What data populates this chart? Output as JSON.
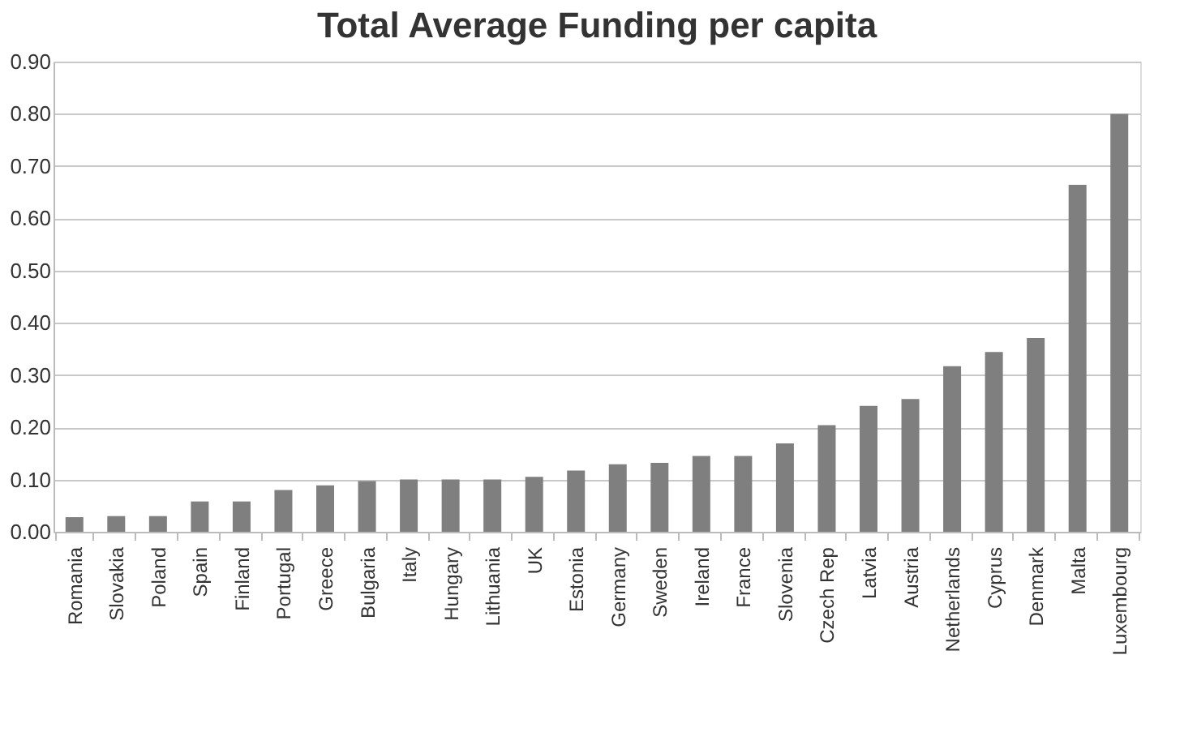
{
  "chart_data": {
    "type": "bar",
    "title": "Total Average Funding per capita",
    "categories": [
      "Romania",
      "Slovakia",
      "Poland",
      "Spain",
      "Finland",
      "Portugal",
      "Greece",
      "Bulgaria",
      "Italy",
      "Hungary",
      "Lithuania",
      "UK",
      "Estonia",
      "Germany",
      "Sweden",
      "Ireland",
      "France",
      "Slovenia",
      "Czech Rep",
      "Latvia",
      "Austria",
      "Netherlands",
      "Cyprus",
      "Denmark",
      "Malta",
      "Luxembourg"
    ],
    "values": [
      0.028,
      0.03,
      0.03,
      0.058,
      0.058,
      0.08,
      0.089,
      0.097,
      0.1,
      0.1,
      0.1,
      0.105,
      0.117,
      0.129,
      0.132,
      0.145,
      0.145,
      0.169,
      0.204,
      0.241,
      0.254,
      0.317,
      0.344,
      0.371,
      0.664,
      0.8
    ],
    "color": "#7f7f7f",
    "ylim": [
      0,
      0.9
    ],
    "yticks": [
      {
        "value": 0,
        "label": "0.00"
      },
      {
        "value": 0.1,
        "label": "0.10"
      },
      {
        "value": 0.2,
        "label": "0.20"
      },
      {
        "value": 0.3,
        "label": "0.30"
      },
      {
        "value": 0.4,
        "label": "0.40"
      },
      {
        "value": 0.5,
        "label": "0.50"
      },
      {
        "value": 0.6,
        "label": "0.60"
      },
      {
        "value": 0.7,
        "label": "0.70"
      },
      {
        "value": 0.8,
        "label": "0.80"
      },
      {
        "value": 0.9,
        "label": "0.90"
      }
    ],
    "grid": "y"
  }
}
